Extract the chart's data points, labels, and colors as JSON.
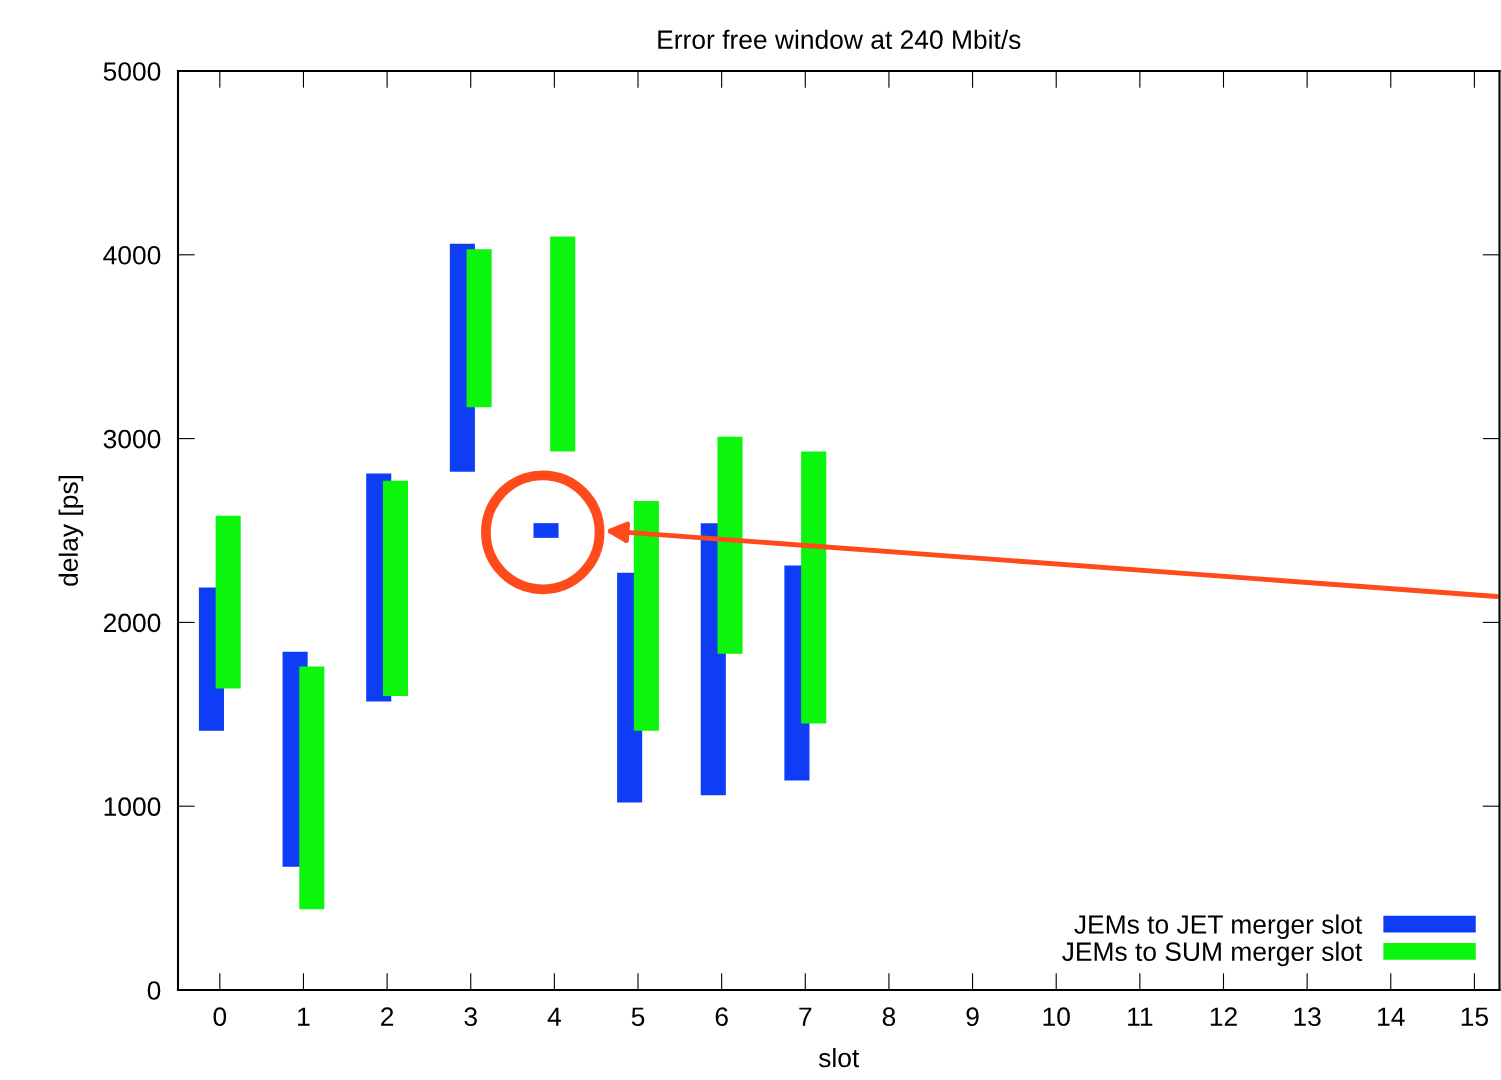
{
  "chart_data": {
    "type": "bar",
    "title": "Error free window at 240 Mbit/s",
    "xlabel": "slot",
    "ylabel": "delay [ps]",
    "series": [
      {
        "name": "JEMs to JET merger slot",
        "color": "#0f3cf5",
        "x": [
          -0.1,
          0.9,
          1.9,
          2.9,
          3.9,
          4.9,
          5.9,
          6.9
        ],
        "base": [
          1410,
          670,
          1570,
          2820,
          2460,
          1020,
          1060,
          1140
        ],
        "values": [
          780,
          1170,
          1240,
          1240,
          80,
          1250,
          1480,
          1170
        ]
      },
      {
        "name": "JEMs to SUM merger slot",
        "color": "#0cf50c",
        "x": [
          0.1,
          1.1,
          2.1,
          3.1,
          4.1,
          5.1,
          6.1,
          7.1
        ],
        "base": [
          1640,
          440,
          1600,
          3170,
          2930,
          1410,
          1830,
          1450
        ],
        "values": [
          940,
          1320,
          1170,
          860,
          1170,
          1250,
          1180,
          1480
        ]
      }
    ],
    "xlim": [
      -0.5,
      15.3
    ],
    "xticks": [
      0,
      1,
      2,
      3,
      4,
      5,
      6,
      7,
      8,
      9,
      10,
      11,
      12,
      13,
      14,
      15
    ],
    "ylim": [
      0,
      5000
    ],
    "yticks": [
      0,
      1000,
      2000,
      3000,
      4000,
      5000
    ],
    "grid": false,
    "legend": "bottom right"
  }
}
